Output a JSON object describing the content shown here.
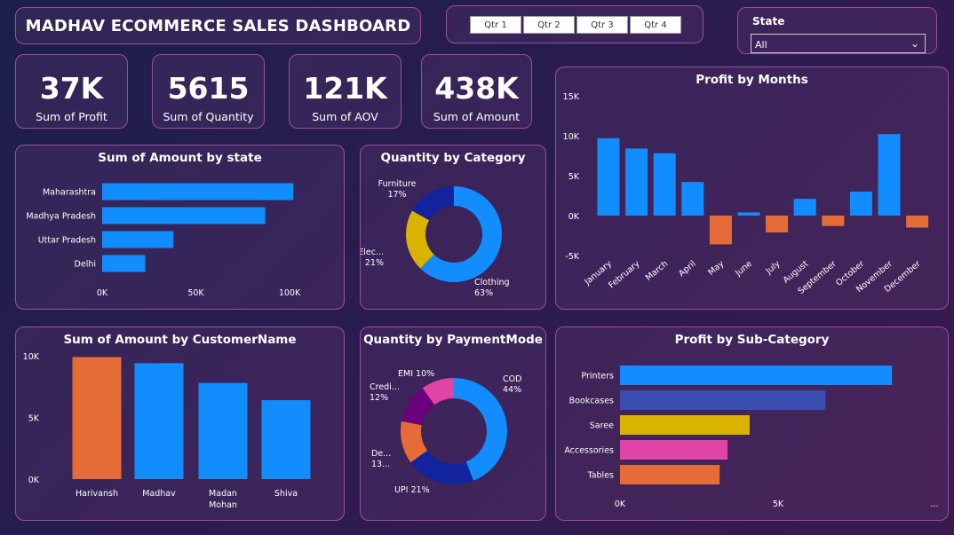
{
  "title": "MADHAV ECOMMERCE SALES DASHBOARD",
  "quarters": [
    "Qtr 1",
    "Qtr 2",
    "Qtr 3",
    "Qtr 4"
  ],
  "state_filter": {
    "label": "State",
    "value": "All"
  },
  "kpis": [
    {
      "value": "37K",
      "label": "Sum of Profit"
    },
    {
      "value": "5615",
      "label": "Sum of Quantity"
    },
    {
      "value": "121K",
      "label": "Sum of AOV"
    },
    {
      "value": "438K",
      "label": "Sum of Amount"
    }
  ],
  "colors": {
    "blue": "#118DFF",
    "orange": "#E66C37",
    "navy": "#12239E",
    "yellow": "#D9B300",
    "purple": "#6B007B",
    "pink": "#E044A7",
    "slate": "#3A4DAE"
  },
  "chart_data": [
    {
      "id": "amount_by_state",
      "type": "bar",
      "orientation": "horizontal",
      "title": "Sum of Amount by state",
      "categories": [
        "Maharashtra",
        "Madhya Pradesh",
        "Uttar Pradesh",
        "Delhi"
      ],
      "values": [
        102000,
        87000,
        38000,
        23000
      ],
      "xlim": [
        0,
        100000
      ],
      "xticks": [
        "0K",
        "50K",
        "100K"
      ]
    },
    {
      "id": "qty_by_category",
      "type": "pie",
      "style": "donut",
      "title": "Quantity by Category",
      "labels": [
        "Clothing",
        "Electronics",
        "Furniture"
      ],
      "display_labels": [
        "Clothing",
        "Elec...",
        "Furniture"
      ],
      "values": [
        63,
        21,
        17
      ],
      "pct_labels": [
        "63%",
        "21%",
        "17%"
      ]
    },
    {
      "id": "profit_by_months",
      "type": "bar",
      "title": "Profit by Months",
      "categories": [
        "January",
        "February",
        "March",
        "April",
        "May",
        "June",
        "July",
        "August",
        "September",
        "October",
        "November",
        "December"
      ],
      "values": [
        9700,
        8400,
        7800,
        4200,
        -3600,
        400,
        -2100,
        2100,
        -1300,
        3000,
        10200,
        -1500
      ],
      "ylim": [
        -5000,
        15000
      ],
      "yticks": [
        "15K",
        "10K",
        "5K",
        "0K",
        "-5K"
      ]
    },
    {
      "id": "amount_by_customer",
      "type": "bar",
      "title": "Sum of Amount by CustomerName",
      "categories": [
        "Harivansh",
        "Madhav",
        "Madan Mohan",
        "Shiva"
      ],
      "values": [
        9900,
        9400,
        7800,
        6400
      ],
      "ylim": [
        0,
        10000
      ],
      "yticks": [
        "10K",
        "5K",
        "0K"
      ]
    },
    {
      "id": "qty_by_paymentmode",
      "type": "pie",
      "style": "donut",
      "title": "Quantity by PaymentMode",
      "labels": [
        "COD",
        "UPI",
        "Debit Card",
        "Credit Card",
        "EMI"
      ],
      "display_labels": [
        "COD",
        "UPI",
        "De...",
        "Credi...",
        "EMI"
      ],
      "values": [
        44,
        21,
        13,
        12,
        10
      ],
      "pct_labels": [
        "44%",
        "21%",
        "13...",
        "12%",
        "10%"
      ]
    },
    {
      "id": "profit_by_subcategory",
      "type": "bar",
      "orientation": "horizontal",
      "title": "Profit by Sub-Category",
      "categories": [
        "Printers",
        "Bookcases",
        "Saree",
        "Accessories",
        "Tables"
      ],
      "values": [
        8600,
        6500,
        4100,
        3400,
        3150
      ],
      "xlim": [
        0,
        10000
      ],
      "xticks": [
        "0K",
        "5K",
        "..."
      ]
    }
  ]
}
